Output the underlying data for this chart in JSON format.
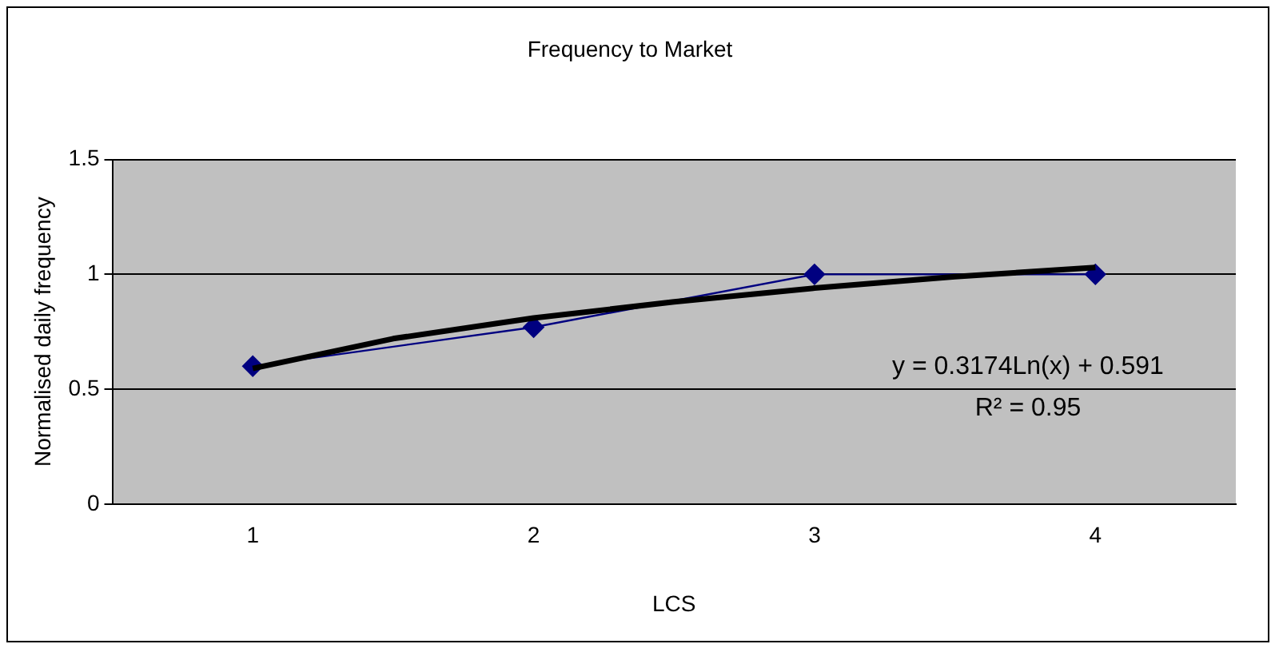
{
  "chart_data": {
    "type": "line",
    "title": "Frequency to Market",
    "xlabel": "LCS",
    "ylabel": "Normalised daily frequency",
    "x": [
      1,
      2,
      3,
      4
    ],
    "series": [
      {
        "color": "#000080",
        "values": [
          0.6,
          0.77,
          1.0,
          1.0
        ],
        "marker": "diamond"
      },
      {
        "type": "line",
        "color": "#000000",
        "x": [
          1,
          1.5,
          2,
          2.5,
          3,
          3.5,
          4
        ],
        "values": [
          0.59,
          0.72,
          0.81,
          0.88,
          0.94,
          0.99,
          1.03
        ],
        "marker": "none"
      }
    ],
    "xlim": [
      0.5,
      4.5
    ],
    "xticks": [
      1,
      2,
      3,
      4
    ],
    "ylim": [
      0,
      1.5
    ],
    "yticks": [
      0,
      0.5,
      1,
      1.5
    ],
    "grid": "y",
    "annotations": [
      "y = 0.3174Ln(x) + 0.591",
      "R² = 0.95"
    ]
  }
}
